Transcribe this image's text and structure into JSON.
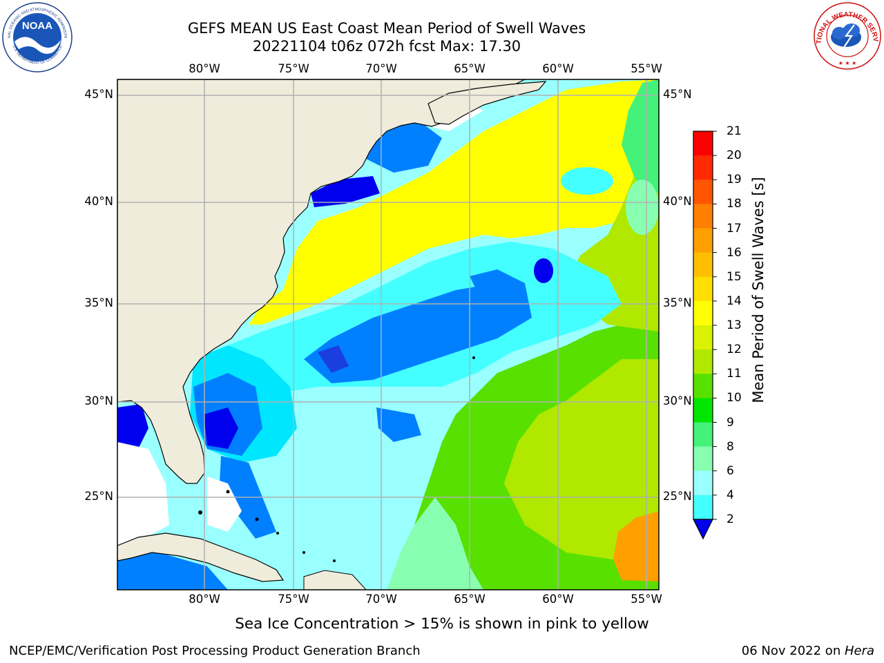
{
  "title": {
    "line1": "GEFS MEAN US East Coast Mean Period of Swell Waves",
    "line2": "20221104 t06z 072h fcst   Max: 17.30"
  },
  "map": {
    "lon_ticks_top": [
      "80°W",
      "75°W",
      "70°W",
      "65°W",
      "60°W",
      "55°W"
    ],
    "lon_ticks_bottom": [
      "80°W",
      "75°W",
      "70°W",
      "65°W",
      "60°W",
      "55°W"
    ],
    "lat_ticks_left": [
      "45°N",
      "40°N",
      "35°N",
      "30°N",
      "25°N"
    ],
    "lat_ticks_right": [
      "45°N",
      "40°N",
      "35°N",
      "30°N",
      "25°N"
    ],
    "land_color": "#efecdc",
    "grid_color": "#b0b0b0"
  },
  "colorbar": {
    "title": "Mean Period of Swell Waves [s]",
    "labels": [
      "21",
      "20",
      "19",
      "18",
      "17",
      "16",
      "15",
      "14",
      "13",
      "12",
      "11",
      "10",
      "9",
      "8",
      "6",
      "4",
      "2"
    ],
    "colors": [
      "#ff0000",
      "#ff2a00",
      "#ff5500",
      "#ff7f00",
      "#ff9f00",
      "#ffbf00",
      "#ffdf00",
      "#ffff00",
      "#d8f200",
      "#b0e800",
      "#58e000",
      "#00e600",
      "#44f27a",
      "#88ffb0",
      "#9affff",
      "#44ffff",
      "#00e6ff",
      "#0080ff",
      "#0000ee"
    ]
  },
  "logos": {
    "noaa": "NOAA",
    "noaa_ring": "NATIONAL OCEANIC AND ATMOSPHERIC ADMINISTRATION",
    "noaa_ring_bottom": "U.S. DEPARTMENT OF COMMERCE",
    "nws_ring": "NATIONAL WEATHER SERVICE"
  },
  "note": "Sea Ice Concentration > 15% is shown in pink to yellow",
  "footer": {
    "left": "NCEP/EMC/Verification Post Processing Product Generation Branch",
    "date": "06 Nov 2022 on ",
    "host": "Hera"
  }
}
